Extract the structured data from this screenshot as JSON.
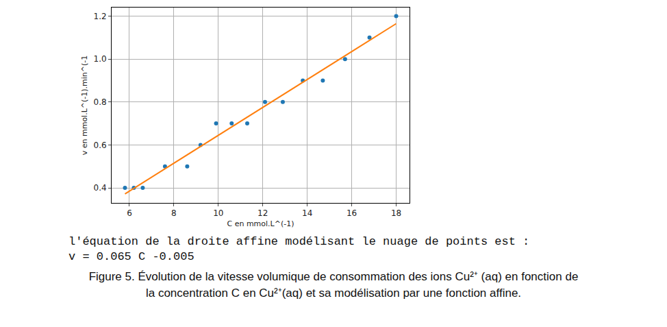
{
  "chart_data": {
    "type": "scatter",
    "x_label": "C en mmol.L^(-1)",
    "y_label": "v en mmol.L^(-1).min^(-1",
    "series": [
      {
        "type": "scatter",
        "marker": "circle",
        "color": "#1f77b4",
        "x": [
          5.8,
          6.2,
          6.6,
          7.6,
          8.6,
          9.2,
          9.9,
          10.6,
          11.3,
          12.1,
          12.9,
          13.8,
          14.7,
          15.7,
          16.8,
          18.0
        ],
        "values": [
          0.4,
          0.4,
          0.4,
          0.5,
          0.5,
          0.6,
          0.7,
          0.7,
          0.7,
          0.8,
          0.8,
          0.9,
          0.9,
          1.0,
          1.1,
          1.2
        ]
      },
      {
        "type": "line",
        "line_style": "solid",
        "color": "#ff7f0e",
        "x": [
          5.8,
          18.0
        ],
        "values": [
          0.372,
          1.165
        ]
      }
    ],
    "xlim": [
      5.2,
      18.6
    ],
    "ylim": [
      0.33,
      1.24
    ],
    "xticks": [
      6,
      8,
      10,
      12,
      14,
      16,
      18
    ],
    "yticks": [
      0.4,
      0.6,
      0.8,
      {
        "value": 1.0,
        "label": "1.0"
      },
      1.2
    ],
    "grid": true,
    "annotations": [
      "l'équation de la droite affine modélisant le nuage de points est :",
      "v = 0.065 C -0.005"
    ],
    "caption": [
      "Figure 5. Évolution de la vitesse volumique de consommation des ions Cu²⁺ (aq) en fonction de",
      "la concentration C en Cu²⁺(aq) et sa modélisation par une fonction affine."
    ]
  }
}
